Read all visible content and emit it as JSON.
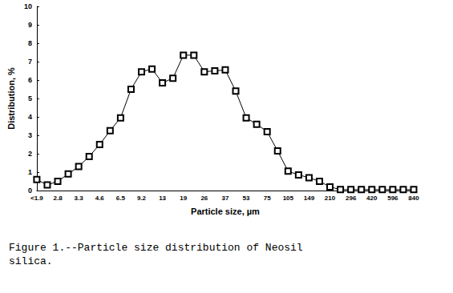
{
  "chart_data": {
    "type": "line",
    "title": "Figure 1.--Particle size distribution of Neosil silica.",
    "x_label": "Particle size, µm",
    "y_label": "Distribution, %",
    "categories": [
      "<1.9",
      null,
      "2.8",
      null,
      "3.3",
      null,
      "4.6",
      null,
      "6.5",
      null,
      "9.2",
      null,
      "13",
      null,
      "19",
      null,
      "26",
      null,
      "37",
      null,
      "53",
      null,
      "75",
      null,
      "105",
      null,
      "149",
      null,
      "210",
      null,
      "296",
      null,
      "420",
      null,
      "596",
      null,
      "840"
    ],
    "values": [
      0.6,
      0.3,
      0.5,
      0.9,
      1.3,
      1.85,
      2.5,
      3.25,
      3.95,
      5.5,
      6.45,
      6.6,
      5.85,
      6.1,
      7.35,
      7.35,
      6.45,
      6.5,
      6.55,
      5.4,
      3.95,
      3.6,
      3.2,
      2.15,
      1.05,
      0.85,
      0.7,
      0.5,
      0.2,
      0.05,
      0.05,
      0.05,
      0.05,
      0.05,
      0.05,
      0.05,
      0.05
    ],
    "color": "#000000",
    "marker": "square",
    "ylim": [
      0,
      10
    ],
    "yticks": [
      0,
      1,
      2,
      3,
      4,
      5,
      6,
      7,
      8,
      9,
      10
    ],
    "grid": false
  }
}
